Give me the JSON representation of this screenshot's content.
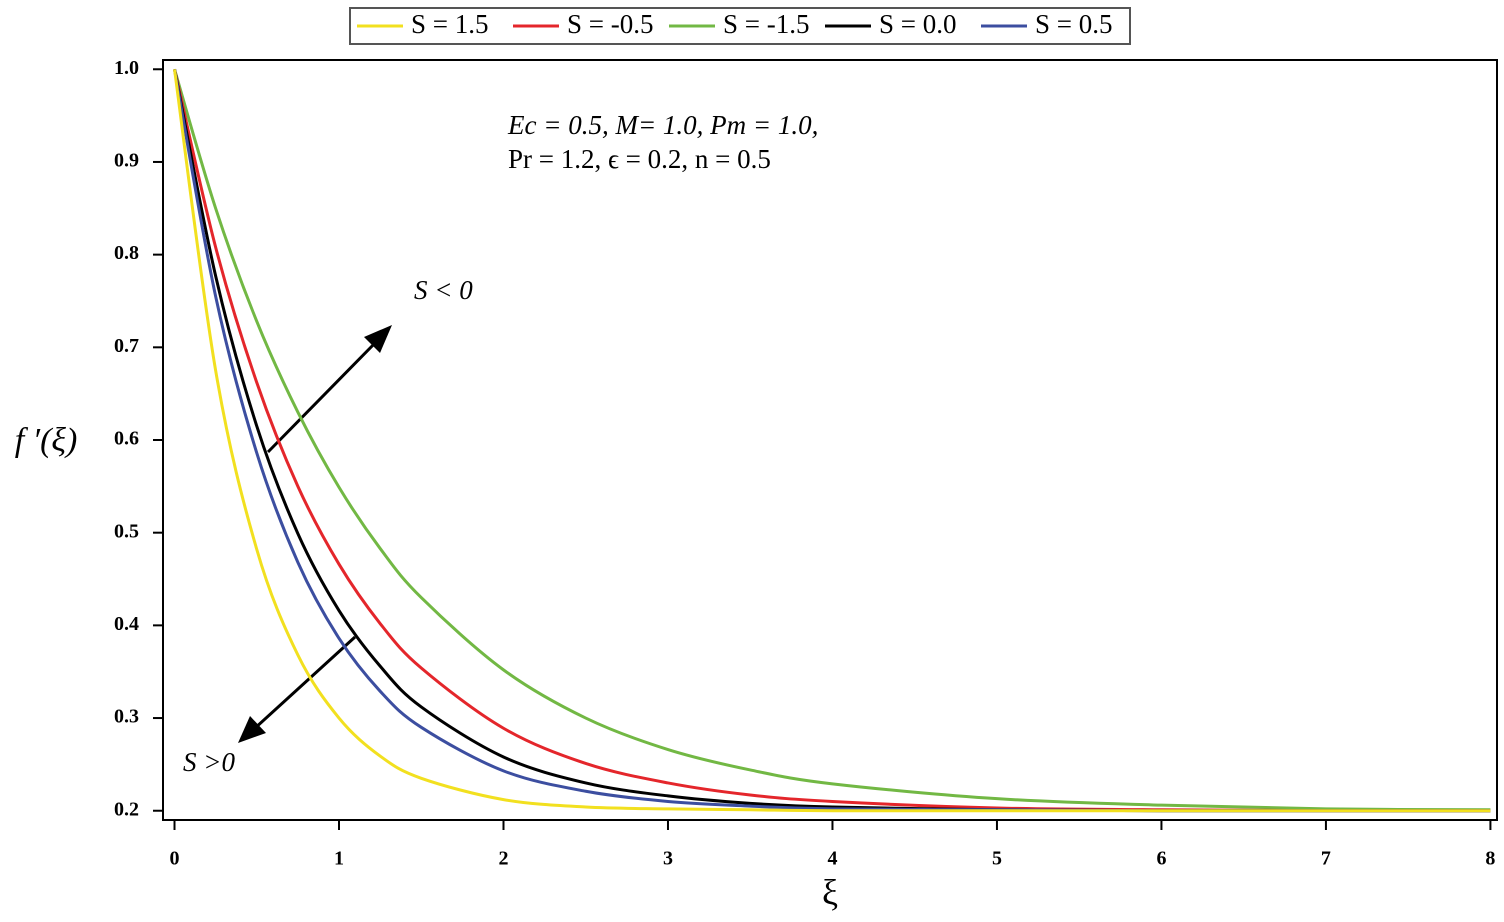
{
  "chart_data": {
    "type": "line",
    "x_label": "ξ",
    "y_label": "f ′(ξ)",
    "annotations": [
      "Ec = 0.5, M= 1.0, Pm = 1.0,",
      "Pr = 1.2, ϵ = 0.2, n = 0.5",
      "S < 0",
      "S >0"
    ],
    "x": [
      0,
      0.25,
      0.5,
      0.75,
      1,
      1.25,
      1.5,
      2,
      2.5,
      3,
      3.5,
      4,
      5,
      6,
      7,
      8
    ],
    "series": [
      {
        "name": "S = 1.5",
        "color": "#f2e01f",
        "values": [
          1.0,
          0.675,
          0.482,
          0.368,
          0.3,
          0.259,
          0.235,
          0.212,
          0.204,
          0.202,
          0.201,
          0.2,
          0.2,
          0.2,
          0.2,
          0.2
        ]
      },
      {
        "name": "S = -0.5",
        "color": "#e4262b",
        "values": [
          1.0,
          0.808,
          0.662,
          0.55,
          0.466,
          0.402,
          0.354,
          0.289,
          0.251,
          0.23,
          0.217,
          0.21,
          0.203,
          0.201,
          0.2,
          0.2
        ]
      },
      {
        "name": "S = -1.5",
        "color": "#72b844",
        "values": [
          1.0,
          0.85,
          0.728,
          0.63,
          0.549,
          0.483,
          0.43,
          0.352,
          0.3,
          0.266,
          0.244,
          0.229,
          0.213,
          0.206,
          0.202,
          0.201
        ]
      },
      {
        "name": "S = 0.0",
        "color": "#000000",
        "values": [
          1.0,
          0.777,
          0.615,
          0.499,
          0.416,
          0.356,
          0.312,
          0.258,
          0.23,
          0.216,
          0.208,
          0.204,
          0.201,
          0.2,
          0.2,
          0.2
        ]
      },
      {
        "name": "S = 0.5",
        "color": "#3c4ea0",
        "values": [
          1.0,
          0.755,
          0.586,
          0.468,
          0.386,
          0.329,
          0.29,
          0.243,
          0.221,
          0.21,
          0.205,
          0.202,
          0.201,
          0.2,
          0.2,
          0.2
        ]
      }
    ],
    "xlim": [
      -0.07,
      8.04
    ],
    "ylim": [
      0.19,
      1.01
    ],
    "xticks": [
      0,
      1,
      2,
      3,
      4,
      5,
      6,
      7,
      8
    ],
    "yticks": [
      0.2,
      0.3,
      0.4,
      0.5,
      0.6,
      0.7,
      0.8,
      0.9,
      {
        "value": 1,
        "label": "1.0"
      }
    ],
    "grid": false
  }
}
